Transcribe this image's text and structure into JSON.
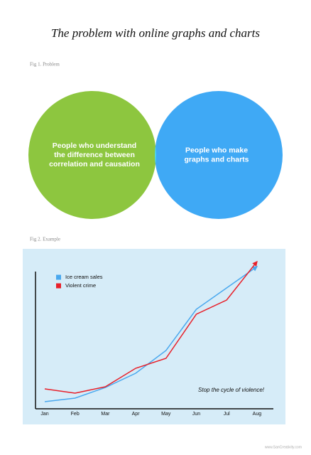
{
  "title": "The problem with online graphs and charts",
  "venn": {
    "caption": "Fig 1. Problem",
    "left": [
      "People who understand",
      "the difference between",
      "correlation and causation"
    ],
    "right": [
      "People who make",
      "graphs and charts"
    ]
  },
  "chart_data": {
    "type": "line",
    "caption": "Fig 2. Example",
    "categories": [
      "Jan",
      "Feb",
      "Mar",
      "Apr",
      "May",
      "Jun",
      "Jul",
      "Aug"
    ],
    "series": [
      {
        "name": "Ice cream sales",
        "color": "#4aa8ee",
        "values": [
          5,
          7.5,
          15,
          25,
          41,
          70,
          85,
          100
        ]
      },
      {
        "name": "Violent crime",
        "color": "#e8202a",
        "values": [
          14,
          11,
          15.5,
          28.5,
          35.5,
          66.5,
          76.5,
          103.5
        ]
      }
    ],
    "ylim": [
      0,
      110
    ],
    "annotation": "Stop the cycle of violence!"
  },
  "footer": "www.SanCreativity.com"
}
